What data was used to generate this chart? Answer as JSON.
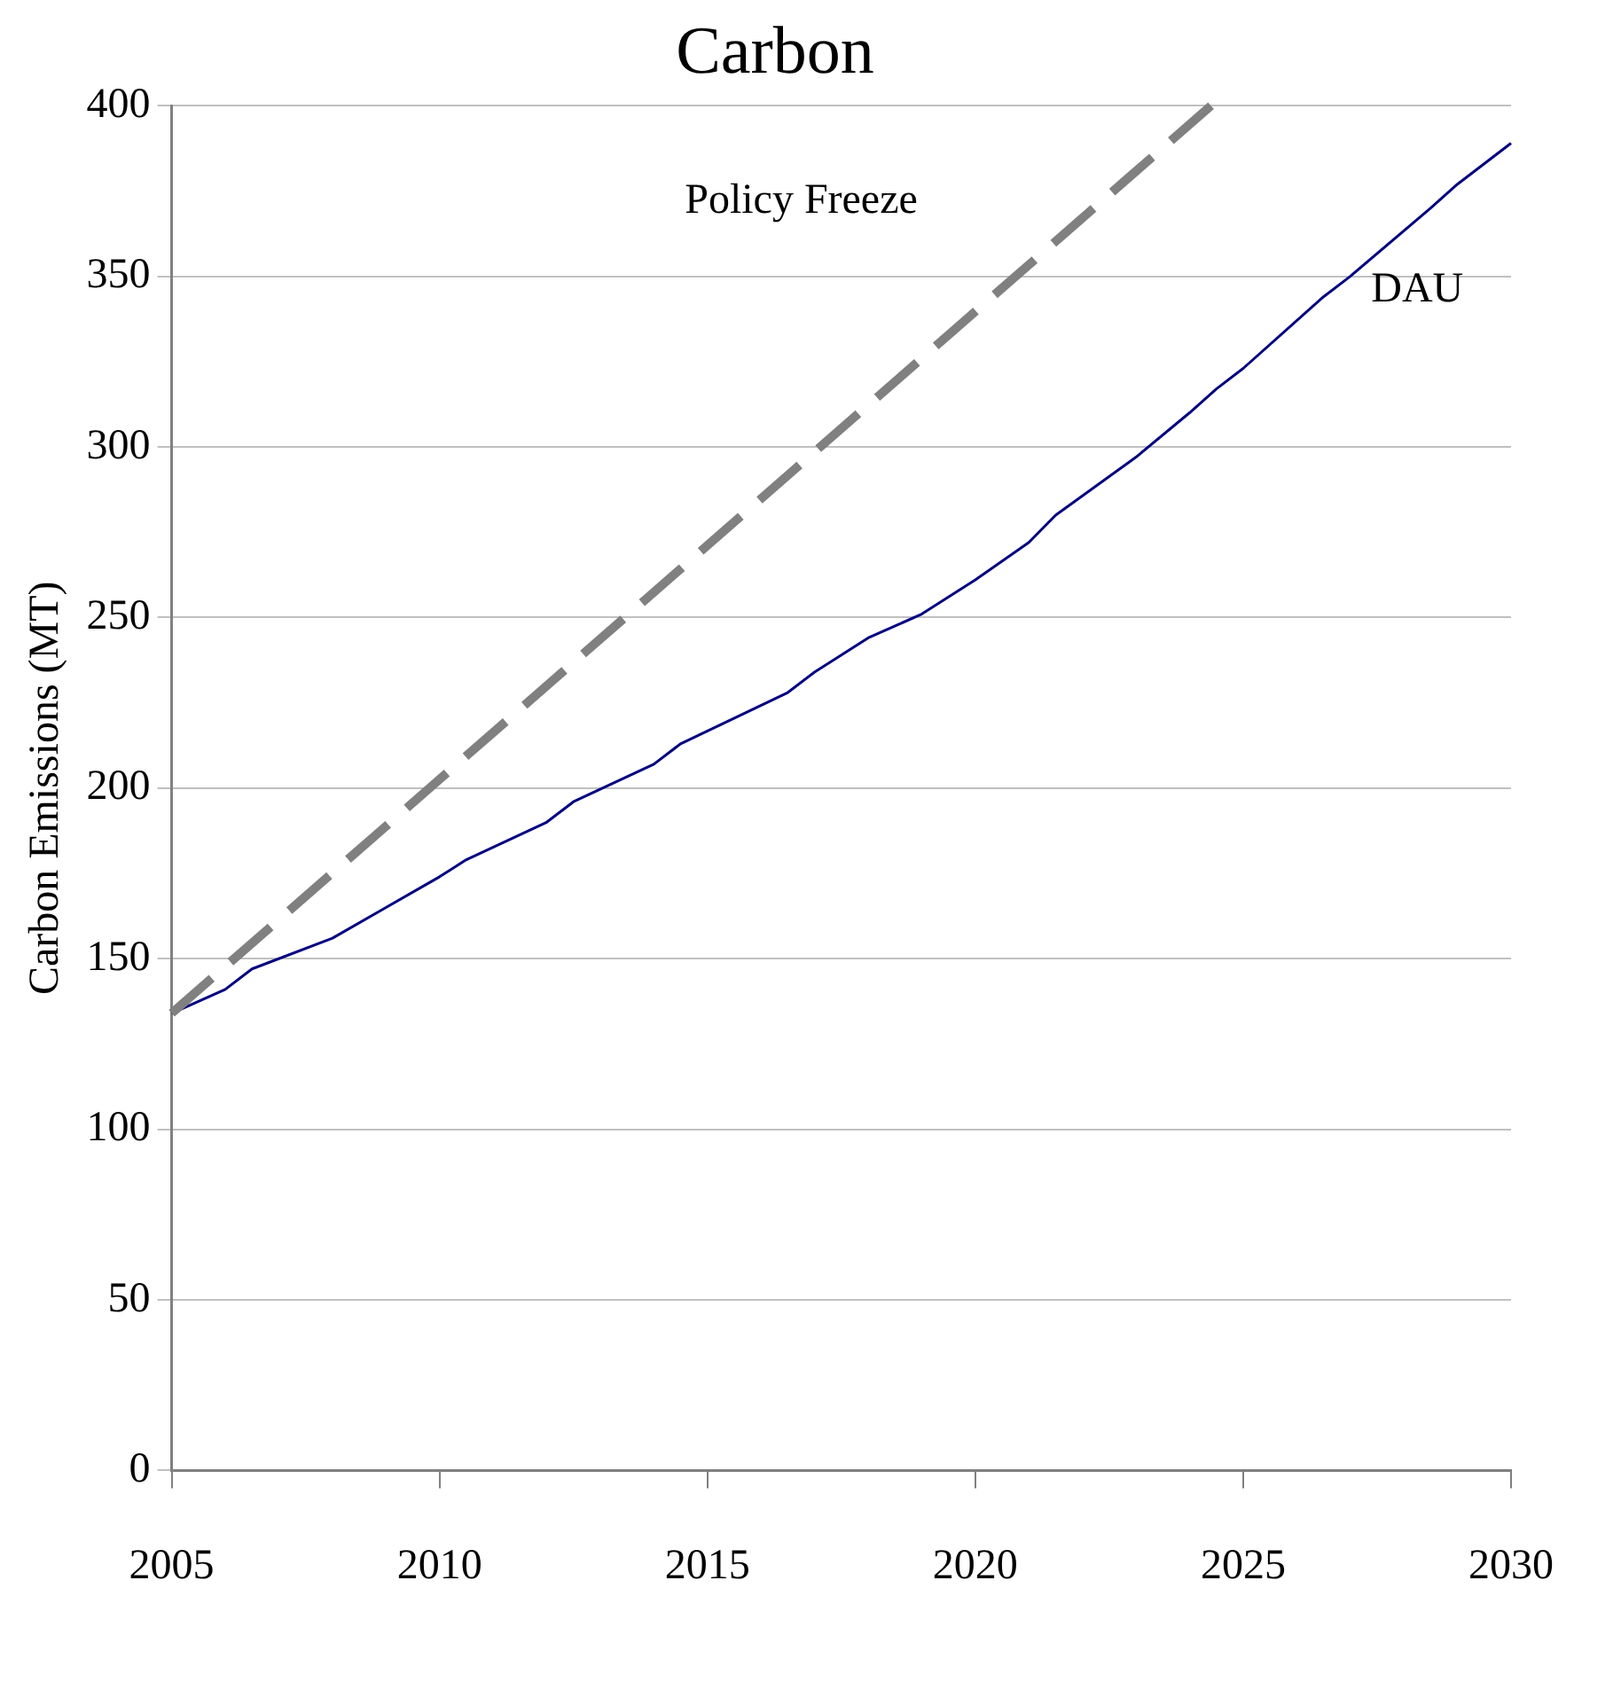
{
  "chart_data": {
    "type": "line",
    "title": "Carbon",
    "ylabel": "Carbon Emissions (MT)",
    "xlim": [
      2005,
      2030
    ],
    "xticks": [
      2005,
      2010,
      2015,
      2020,
      2025,
      2030
    ],
    "ylim": [
      0,
      400
    ],
    "yticks": [
      0,
      50,
      100,
      150,
      200,
      250,
      300,
      350,
      400
    ],
    "grid": "y",
    "legend": false,
    "marker": "none",
    "series": [
      {
        "name": "Policy Freeze",
        "color": "#808080",
        "line_style": "dashed",
        "x": [
          2005,
          2024.4
        ],
        "values": [
          134,
          400
        ]
      },
      {
        "name": "DAU",
        "color": "#000080",
        "line_style": "solid",
        "x": [
          2005,
          2006,
          2006.5,
          2008,
          2009,
          2010,
          2010.5,
          2012,
          2012.5,
          2014,
          2014.5,
          2016.5,
          2017,
          2018,
          2019,
          2020,
          2021,
          2021.5,
          2023,
          2024,
          2024.5,
          2025,
          2026.5,
          2027,
          2028.5,
          2029,
          2030
        ],
        "values": [
          134,
          141,
          147,
          156,
          165,
          174,
          179,
          190,
          196,
          207,
          213,
          228,
          234,
          244,
          251,
          261,
          272,
          280,
          297,
          310,
          317,
          323,
          344,
          350,
          370,
          377,
          389
        ]
      }
    ]
  }
}
